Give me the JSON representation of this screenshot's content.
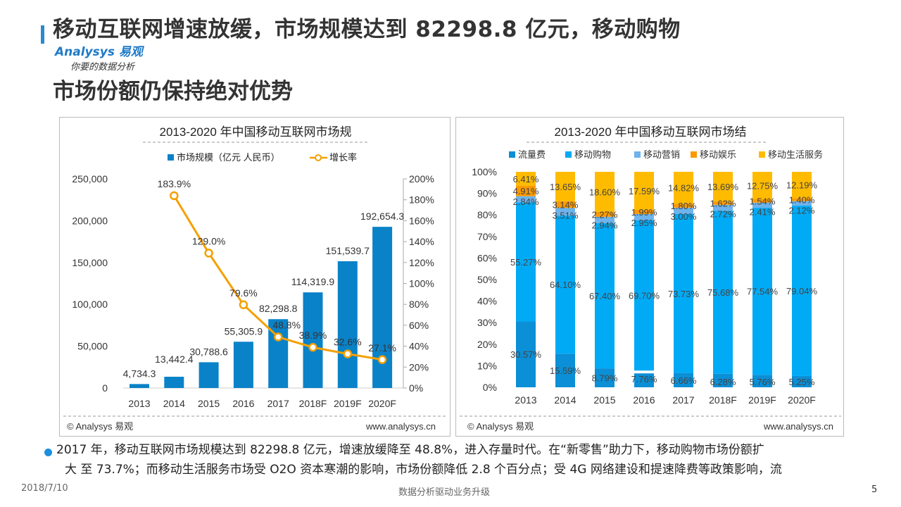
{
  "header": {
    "title_line1": "移动互联网增速放缓，市场规模达到 82298.8 亿元，移动购物",
    "title_line2": "市场份额仍保持绝对优势",
    "logo_text": "Analysys 易观",
    "slogan": "你要的数据分析",
    "accent_color": "#2a8ad0"
  },
  "chart_data": [
    {
      "type": "bar+line",
      "title": "2013-2020 年中国移动互联网市场规",
      "categories": [
        "2013",
        "2014",
        "2015",
        "2016",
        "2017",
        "2018F",
        "2019F",
        "2020F"
      ],
      "series": [
        {
          "name": "市场规模（亿元 人民币）",
          "type": "bar",
          "axis": "left",
          "color": "#0a82c8",
          "values": [
            4734.3,
            13442.4,
            30788.6,
            55305.9,
            82298.8,
            114319.9,
            151539.7,
            192654.3
          ],
          "labels": [
            "4,734.3",
            "13,442.4",
            "30,788.6",
            "55,305.9",
            "82,298.8",
            "114,319.9",
            "151,539.7",
            "192,654.3"
          ]
        },
        {
          "name": "增长率",
          "type": "line",
          "axis": "right",
          "color": "#f5a000",
          "values": [
            null,
            183.9,
            129.0,
            79.6,
            48.8,
            38.9,
            32.6,
            27.1
          ],
          "labels": [
            "",
            "183.9%",
            "129.0%",
            "79.6%",
            "48.8%",
            "38.9%",
            "32.6%",
            "27.1%"
          ]
        }
      ],
      "ylim_left": [
        0,
        250000
      ],
      "yticks_left": [
        "0",
        "50,000",
        "100,000",
        "150,000",
        "200,000",
        "250,000"
      ],
      "ylim_right": [
        0,
        200
      ],
      "yticks_right": [
        "0%",
        "20%",
        "40%",
        "60%",
        "80%",
        "100%",
        "120%",
        "140%",
        "160%",
        "180%",
        "200%"
      ],
      "legend": "top",
      "source": "© Analysys 易观",
      "url": "www.analysys.cn"
    },
    {
      "type": "stacked-bar",
      "title": "2013-2020 年中国移动互联网市场结",
      "categories": [
        "2013",
        "2014",
        "2015",
        "2016",
        "2017",
        "2018F",
        "2019F",
        "2020F"
      ],
      "series": [
        {
          "name": "流量费",
          "color": "#0b8fd6",
          "values": [
            30.57,
            15.59,
            8.79,
            7.76,
            6.66,
            6.28,
            5.76,
            5.25
          ]
        },
        {
          "name": "移动购物",
          "color": "#00aaf5",
          "values": [
            55.27,
            64.1,
            67.4,
            69.7,
            73.73,
            75.68,
            77.54,
            79.04
          ]
        },
        {
          "name": "移动营销",
          "color": "#6db3ec",
          "values": [
            2.84,
            3.51,
            2.94,
            2.95,
            3.0,
            2.72,
            2.41,
            2.12
          ]
        },
        {
          "name": "移动娱乐",
          "color": "#fb9a00",
          "values": [
            4.91,
            3.14,
            2.27,
            1.99,
            1.8,
            1.62,
            1.54,
            1.4
          ]
        },
        {
          "name": "移动生活服务",
          "color": "#ffbb00",
          "values": [
            6.41,
            13.65,
            18.6,
            17.59,
            14.82,
            13.69,
            12.75,
            12.19
          ]
        }
      ],
      "ylim": [
        0,
        100
      ],
      "yticks": [
        "0%",
        "10%",
        "20%",
        "30%",
        "40%",
        "50%",
        "60%",
        "70%",
        "80%",
        "90%",
        "100%"
      ],
      "legend": "top",
      "source": "© Analysys 易观",
      "url": "www.analysys.cn"
    }
  ],
  "body": {
    "line1": "2017 年，移动互联网市场规模达到 82298.8 亿元，增速放缓降至 48.8%，进入存量时代。在“新零售”助力下，移动购物市场份额扩",
    "line2": "大 至 73.7%；而移动生活服务市场受 O2O 资本寒潮的影响，市场份额降低 2.8 个百分点；受 4G 网络建设和提速降费等政策影响，流"
  },
  "footer": {
    "date": "2018/7/10",
    "slogan": "数据分析驱动业务升级",
    "page": "5"
  }
}
